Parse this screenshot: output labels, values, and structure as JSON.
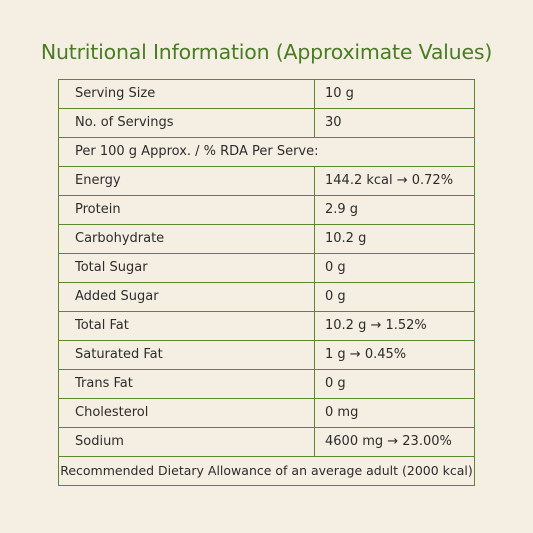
{
  "title": "Nutritional Information (Approximate Values)",
  "rows_top": [
    {
      "label": "Serving Size",
      "value": "10 g"
    },
    {
      "label": "No. of Servings",
      "value": "30"
    }
  ],
  "per_serve_header": "Per 100 g Approx. / % RDA Per Serve:",
  "nutrients": [
    {
      "label": "Energy",
      "value": "144.2 kcal → 0.72%"
    },
    {
      "label": "Protein",
      "value": "2.9 g"
    },
    {
      "label": "Carbohydrate",
      "value": "10.2 g"
    },
    {
      "label": "Total Sugar",
      "value": "0 g"
    },
    {
      "label": "Added Sugar",
      "value": "0 g"
    },
    {
      "label": "Total Fat",
      "value": "10.2 g → 1.52%"
    },
    {
      "label": "Saturated Fat",
      "value": "1 g → 0.45%"
    },
    {
      "label": "Trans Fat",
      "value": "0 g"
    },
    {
      "label": "Cholesterol",
      "value": "0 mg"
    },
    {
      "label": "Sodium",
      "value": "4600 mg → 23.00%"
    }
  ],
  "footer_note": "Recommended Dietary Allowance of an average adult (2000 kcal)",
  "colors": {
    "background": "#f5efe3",
    "accent": "#4a7c23",
    "border": "#5a8a2e"
  }
}
